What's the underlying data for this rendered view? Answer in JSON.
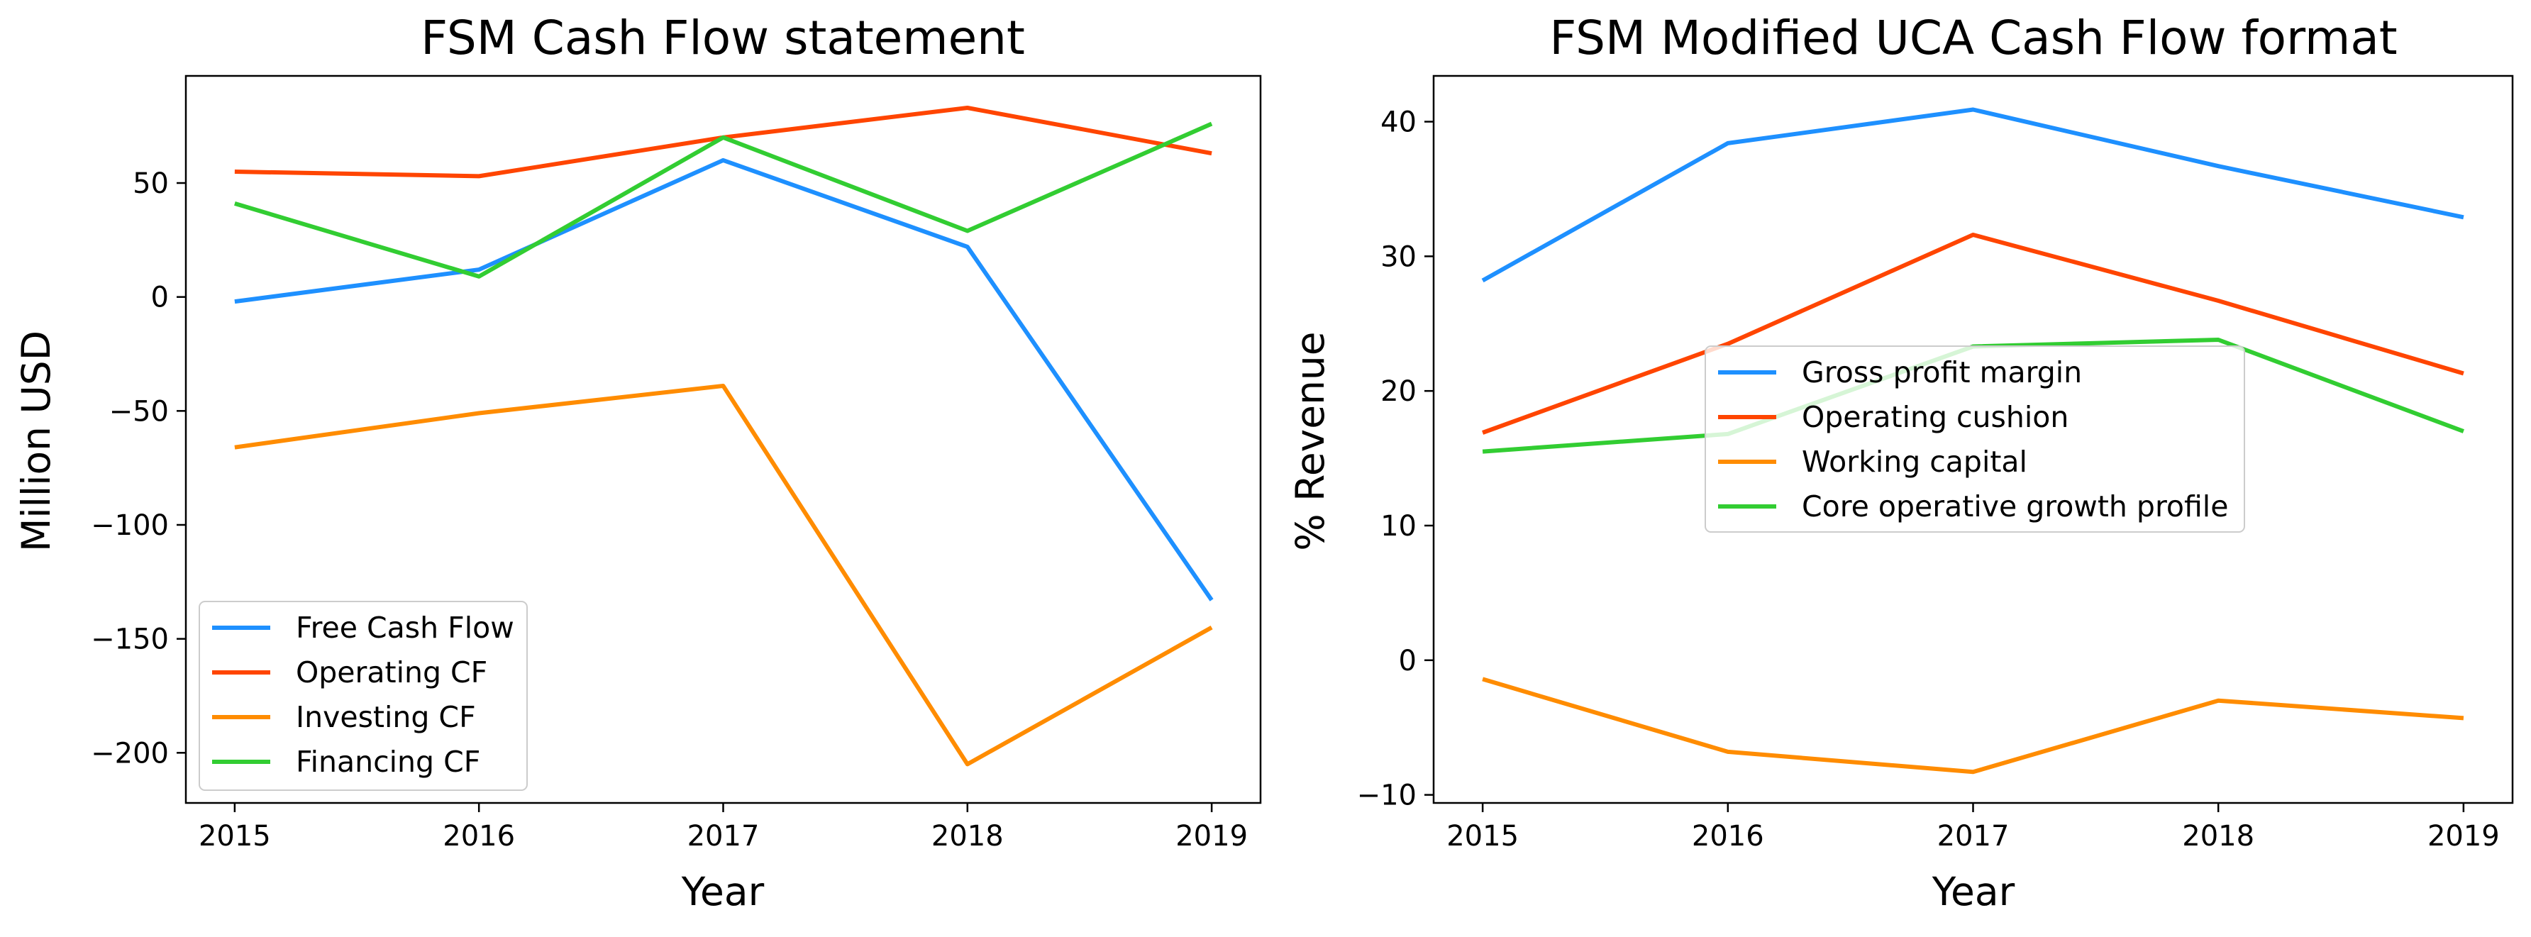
{
  "chart_data": [
    {
      "type": "line",
      "title": "FSM Cash Flow statement",
      "xlabel": "Year",
      "ylabel": "Million USD",
      "x": [
        2015,
        2016,
        2017,
        2018,
        2019
      ],
      "xlim": [
        2014.8,
        2019.2
      ],
      "ylim": [
        -222,
        97
      ],
      "yticks": [
        -200,
        -150,
        -100,
        -50,
        0,
        50
      ],
      "ytick_labels": [
        "−200",
        "−150",
        "−100",
        "−50",
        "0",
        "50"
      ],
      "grid": false,
      "legend_position": "lower-left",
      "series": [
        {
          "name": "Free Cash Flow",
          "color": "#1e90ff",
          "values": [
            -2,
            12,
            60,
            22,
            -133
          ]
        },
        {
          "name": "Operating CF",
          "color": "#ff4500",
          "values": [
            55,
            53,
            70,
            83,
            63
          ]
        },
        {
          "name": "Investing CF",
          "color": "#ff8c00",
          "values": [
            -66,
            -51,
            -39,
            -205,
            -145
          ]
        },
        {
          "name": "Financing CF",
          "color": "#32cd32",
          "values": [
            41,
            9,
            70,
            29,
            76
          ]
        }
      ]
    },
    {
      "type": "line",
      "title": "FSM Modified UCA Cash Flow format",
      "xlabel": "Year",
      "ylabel": "% Revenue",
      "x": [
        2015,
        2016,
        2017,
        2018,
        2019
      ],
      "xlim": [
        2014.8,
        2019.2
      ],
      "ylim": [
        -10.6,
        43.4
      ],
      "yticks": [
        -10,
        0,
        10,
        20,
        30,
        40
      ],
      "ytick_labels": [
        "−10",
        "0",
        "10",
        "20",
        "30",
        "40"
      ],
      "grid": false,
      "legend_position": "center",
      "series": [
        {
          "name": "Gross profit margin",
          "color": "#1e90ff",
          "values": [
            28.2,
            38.4,
            40.9,
            36.7,
            32.9
          ]
        },
        {
          "name": "Operating cushion",
          "color": "#ff4500",
          "values": [
            16.9,
            23.5,
            31.6,
            26.7,
            21.3
          ]
        },
        {
          "name": "Working capital",
          "color": "#ff8c00",
          "values": [
            -1.4,
            -6.8,
            -8.3,
            -3.0,
            -4.3
          ]
        },
        {
          "name": "Core operative growth profile",
          "color": "#32cd32",
          "values": [
            15.5,
            16.8,
            23.3,
            23.8,
            17.0
          ]
        }
      ]
    }
  ]
}
